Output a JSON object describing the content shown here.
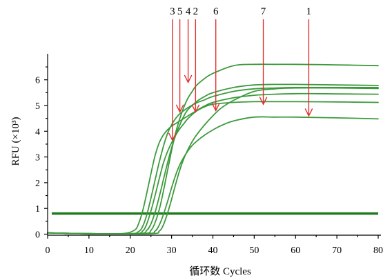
{
  "chart_data": {
    "type": "line",
    "xlabel": "循环数 Cycles",
    "ylabel": "RFU (×10³)",
    "xlim": [
      0,
      80
    ],
    "ylim": [
      0,
      7
    ],
    "xticks": [
      0,
      10,
      20,
      30,
      40,
      50,
      60,
      70,
      80
    ],
    "yticks": [
      0,
      1,
      2,
      3,
      4,
      5,
      6
    ],
    "grid": false,
    "colors": {
      "curve": "#3c9a3c",
      "threshold": "#1e7a1e",
      "arrow": "#e03030",
      "axis": "#000000"
    },
    "threshold": {
      "y": 0.8,
      "x_range": [
        1,
        80
      ]
    },
    "series": [
      {
        "x": [
          0,
          10,
          18,
          21,
          22,
          23,
          24,
          25,
          26,
          27,
          28,
          29,
          30,
          31,
          32,
          34,
          36,
          38,
          40,
          45,
          50,
          55,
          60,
          65,
          70,
          80
        ],
        "y": [
          0.05,
          0.02,
          0.02,
          0.15,
          0.4,
          0.9,
          1.6,
          2.35,
          3.05,
          3.55,
          3.85,
          4.05,
          4.2,
          4.3,
          4.4,
          4.6,
          4.8,
          4.98,
          5.12,
          5.3,
          5.4,
          5.44,
          5.46,
          5.46,
          5.45,
          5.44
        ]
      },
      {
        "x": [
          0,
          10,
          20,
          22,
          23,
          24,
          25,
          26,
          27,
          28,
          29,
          30,
          31,
          32,
          34,
          36,
          38,
          40,
          45,
          50,
          55,
          60,
          70,
          80
        ],
        "y": [
          0.05,
          0.02,
          0.02,
          0.1,
          0.3,
          0.75,
          1.4,
          2.1,
          2.8,
          3.4,
          3.9,
          4.25,
          4.5,
          4.68,
          4.92,
          5.1,
          5.22,
          5.35,
          5.55,
          5.65,
          5.68,
          5.7,
          5.7,
          5.7
        ]
      },
      {
        "x": [
          0,
          10,
          21,
          23,
          24,
          25,
          26,
          27,
          28,
          29,
          30,
          31,
          32,
          33,
          34,
          36,
          38,
          40,
          45,
          50,
          55,
          60,
          70,
          80
        ],
        "y": [
          0.05,
          0.02,
          0.02,
          0.12,
          0.4,
          0.9,
          1.5,
          2.15,
          2.75,
          3.2,
          3.55,
          3.85,
          4.1,
          4.3,
          4.5,
          4.78,
          4.95,
          5.05,
          5.12,
          5.15,
          5.15,
          5.15,
          5.14,
          5.12
        ]
      },
      {
        "x": [
          0,
          10,
          22,
          24,
          25,
          26,
          27,
          28,
          29,
          30,
          31,
          32,
          33,
          34,
          36,
          38,
          40,
          45,
          50,
          55,
          60,
          70,
          80
        ],
        "y": [
          0.05,
          0.02,
          0.02,
          0.15,
          0.4,
          0.85,
          1.45,
          2.1,
          2.75,
          3.35,
          3.85,
          4.25,
          4.6,
          4.85,
          5.15,
          5.35,
          5.5,
          5.7,
          5.8,
          5.82,
          5.82,
          5.8,
          5.78
        ]
      },
      {
        "x": [
          0,
          10,
          23,
          25,
          26,
          27,
          28,
          29,
          30,
          31,
          32,
          33,
          34,
          35,
          36,
          38,
          40,
          45,
          50,
          55,
          60,
          70,
          80
        ],
        "y": [
          0.05,
          0.02,
          0.02,
          0.15,
          0.45,
          0.95,
          1.65,
          2.45,
          3.25,
          3.95,
          4.5,
          4.95,
          5.3,
          5.55,
          5.78,
          6.05,
          6.25,
          6.55,
          6.6,
          6.6,
          6.6,
          6.58,
          6.55
        ]
      },
      {
        "x": [
          0,
          10,
          24,
          26,
          27,
          28,
          29,
          30,
          31,
          32,
          33,
          34,
          35,
          36,
          38,
          40,
          42,
          45,
          50,
          55,
          60,
          70,
          80
        ],
        "y": [
          0.05,
          0.02,
          0.02,
          0.12,
          0.35,
          0.75,
          1.25,
          1.8,
          2.3,
          2.7,
          3.0,
          3.25,
          3.45,
          3.6,
          3.85,
          4.05,
          4.22,
          4.4,
          4.55,
          4.55,
          4.55,
          4.52,
          4.48
        ]
      },
      {
        "x": [
          0,
          10,
          25,
          27,
          28,
          29,
          30,
          31,
          32,
          33,
          34,
          35,
          36,
          38,
          40,
          42,
          45,
          50,
          55,
          60,
          70,
          80
        ],
        "y": [
          0.05,
          0.02,
          0.02,
          0.12,
          0.35,
          0.8,
          1.35,
          1.95,
          2.5,
          2.95,
          3.3,
          3.6,
          3.85,
          4.25,
          4.6,
          4.9,
          5.2,
          5.55,
          5.65,
          5.68,
          5.68,
          5.66
        ]
      }
    ],
    "arrows": [
      {
        "label": "3",
        "x": 30.2,
        "y": 3.65
      },
      {
        "label": "5",
        "x": 32.0,
        "y": 4.75
      },
      {
        "label": "4",
        "x": 34.0,
        "y": 5.9
      },
      {
        "label": "2",
        "x": 35.8,
        "y": 4.75
      },
      {
        "label": "6",
        "x": 40.7,
        "y": 4.8
      },
      {
        "label": "7",
        "x": 52.2,
        "y": 5.05
      },
      {
        "label": "1",
        "x": 63.2,
        "y": 4.6
      }
    ]
  }
}
